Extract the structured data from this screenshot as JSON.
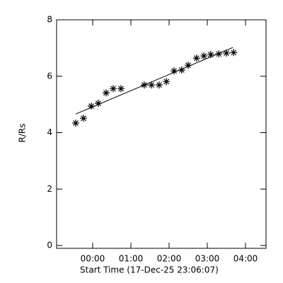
{
  "chart_data": {
    "type": "scatter",
    "x_label": "Start Time (17-Dec-25 23:06:07)",
    "y_label": "R/Rs",
    "xlim": [
      -0.944,
      4.537
    ],
    "ylim": [
      -0.1,
      8
    ],
    "xticks": [
      {
        "value": 0,
        "label": "00:00"
      },
      {
        "value": 1,
        "label": "01:00"
      },
      {
        "value": 2,
        "label": "02:00"
      },
      {
        "value": 3,
        "label": "03:00"
      },
      {
        "value": 4,
        "label": "04:00"
      }
    ],
    "yticks": [
      0,
      2,
      4,
      6,
      8
    ],
    "series": [
      {
        "color": "#000000",
        "x": [
          -0.444,
          -0.24,
          -0.037,
          0.148,
          0.352,
          0.537,
          0.741,
          1.35,
          1.54,
          1.74,
          1.93,
          2.13,
          2.33,
          2.5,
          2.72,
          2.91,
          3.09,
          3.3,
          3.5,
          3.69
        ],
        "values": [
          4.34,
          4.51,
          4.94,
          5.04,
          5.41,
          5.56,
          5.56,
          5.69,
          5.69,
          5.69,
          5.81,
          6.19,
          6.22,
          6.39,
          6.64,
          6.72,
          6.77,
          6.79,
          6.82,
          6.84
        ]
      }
    ],
    "fit": {
      "color": "#000000",
      "x": [
        -0.444,
        3.67
      ],
      "values": [
        4.66,
        7.02
      ]
    }
  }
}
